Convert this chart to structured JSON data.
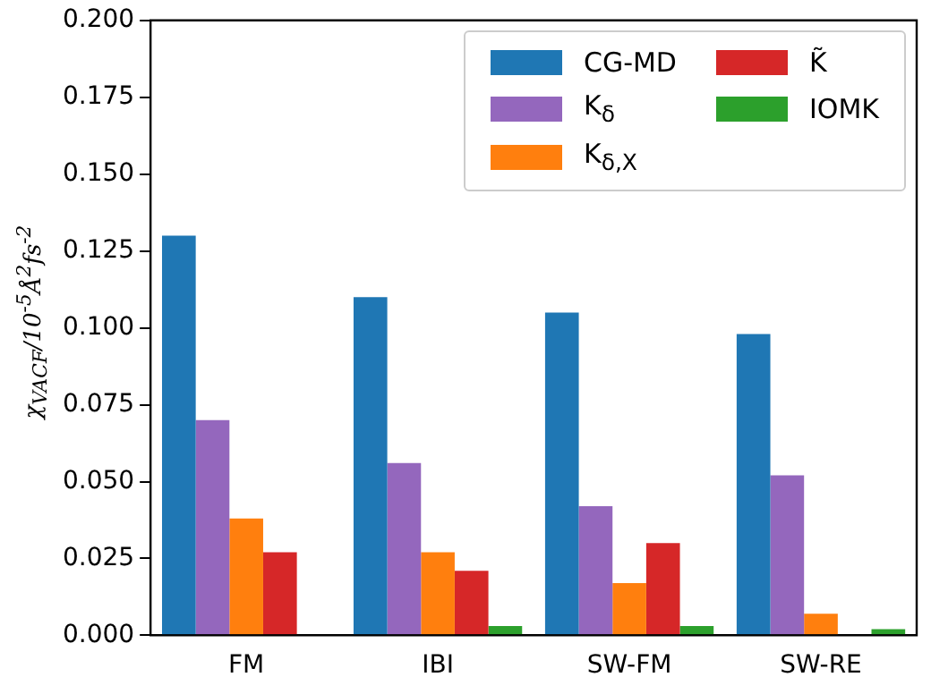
{
  "chart_data": {
    "type": "bar",
    "ylabel": "χ$_{VACF}$/10$^{-5}$Å$^{2}$fs$^{-2}$",
    "categories": [
      "FM",
      "IBI",
      "SW-FM",
      "SW-RE"
    ],
    "series": [
      {
        "name": "CG-MD",
        "color": "#1f77b4",
        "values": [
          0.13,
          0.11,
          0.105,
          0.098
        ]
      },
      {
        "name": "K$_{δ}$",
        "color": "#9467bd",
        "values": [
          0.07,
          0.056,
          0.042,
          0.052
        ]
      },
      {
        "name": "K$_{δ,X}$",
        "color": "#ff7f0e",
        "values": [
          0.038,
          0.027,
          0.017,
          0.007
        ]
      },
      {
        "name": "K̃",
        "color": "#d62728",
        "values": [
          0.027,
          0.021,
          0.03,
          0
        ]
      },
      {
        "name": "IOMK",
        "color": "#2ca02c",
        "values": [
          0,
          0.003,
          0.003,
          0.002
        ]
      }
    ],
    "ylim": [
      0,
      0.2
    ],
    "yticks": [
      {
        "value": 0,
        "label": "0.000"
      },
      {
        "value": 0.025,
        "label": "0.025"
      },
      {
        "value": 0.05,
        "label": "0.050"
      },
      {
        "value": 0.075,
        "label": "0.075"
      },
      {
        "value": 0.1,
        "label": "0.100"
      },
      {
        "value": 0.125,
        "label": "0.125"
      },
      {
        "value": 0.15,
        "label": "0.150"
      },
      {
        "value": 0.175,
        "label": "0.175"
      },
      {
        "value": 0.2,
        "label": "0.200"
      }
    ],
    "grid": false,
    "legend": "top right"
  }
}
